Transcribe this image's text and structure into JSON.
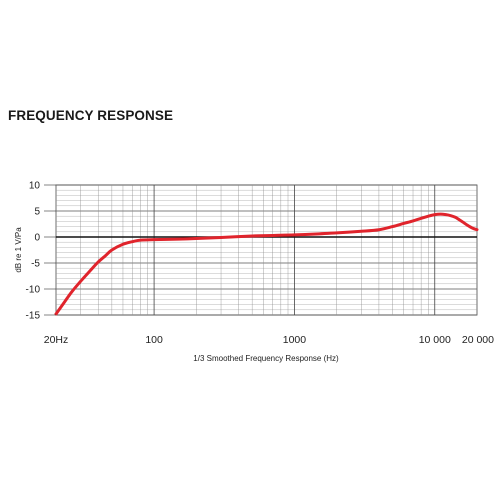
{
  "page": {
    "title": "FREQUENCY RESPONSE"
  },
  "chart_data": {
    "type": "line",
    "title": "FREQUENCY RESPONSE",
    "xlabel": "1/3 Smoothed Frequency Response (Hz)",
    "ylabel": "dB re 1 V/Pa",
    "x_scale": "log",
    "xlim": [
      20,
      20000
    ],
    "ylim": [
      -15,
      10
    ],
    "x_ticks": [
      {
        "value": 20,
        "label": "20Hz"
      },
      {
        "value": 100,
        "label": "100"
      },
      {
        "value": 1000,
        "label": "1000"
      },
      {
        "value": 10000,
        "label": "10 000"
      },
      {
        "value": 20000,
        "label": "20 000"
      }
    ],
    "y_ticks": [
      10,
      5,
      0,
      -5,
      -10,
      -15
    ],
    "grid": true,
    "line_color": "#e0242c",
    "series": [
      {
        "x": [
          20,
          23,
          26,
          30,
          35,
          40,
          45,
          50,
          60,
          70,
          80,
          100,
          150,
          200,
          300,
          500,
          700,
          1000,
          1500,
          2000,
          3000,
          4000,
          5000,
          6000,
          7000,
          8000,
          9000,
          10000,
          11000,
          12000,
          13000,
          14000,
          15000,
          16000,
          17000,
          18000,
          19000,
          20000
        ],
        "y": [
          -14.8,
          -12.5,
          -10.5,
          -8.5,
          -6.5,
          -4.8,
          -3.6,
          -2.5,
          -1.4,
          -0.9,
          -0.6,
          -0.5,
          -0.4,
          -0.3,
          -0.1,
          0.2,
          0.3,
          0.4,
          0.6,
          0.8,
          1.1,
          1.4,
          2.0,
          2.6,
          3.1,
          3.6,
          4.0,
          4.3,
          4.4,
          4.3,
          4.1,
          3.8,
          3.3,
          2.8,
          2.3,
          1.9,
          1.6,
          1.4
        ]
      }
    ]
  }
}
